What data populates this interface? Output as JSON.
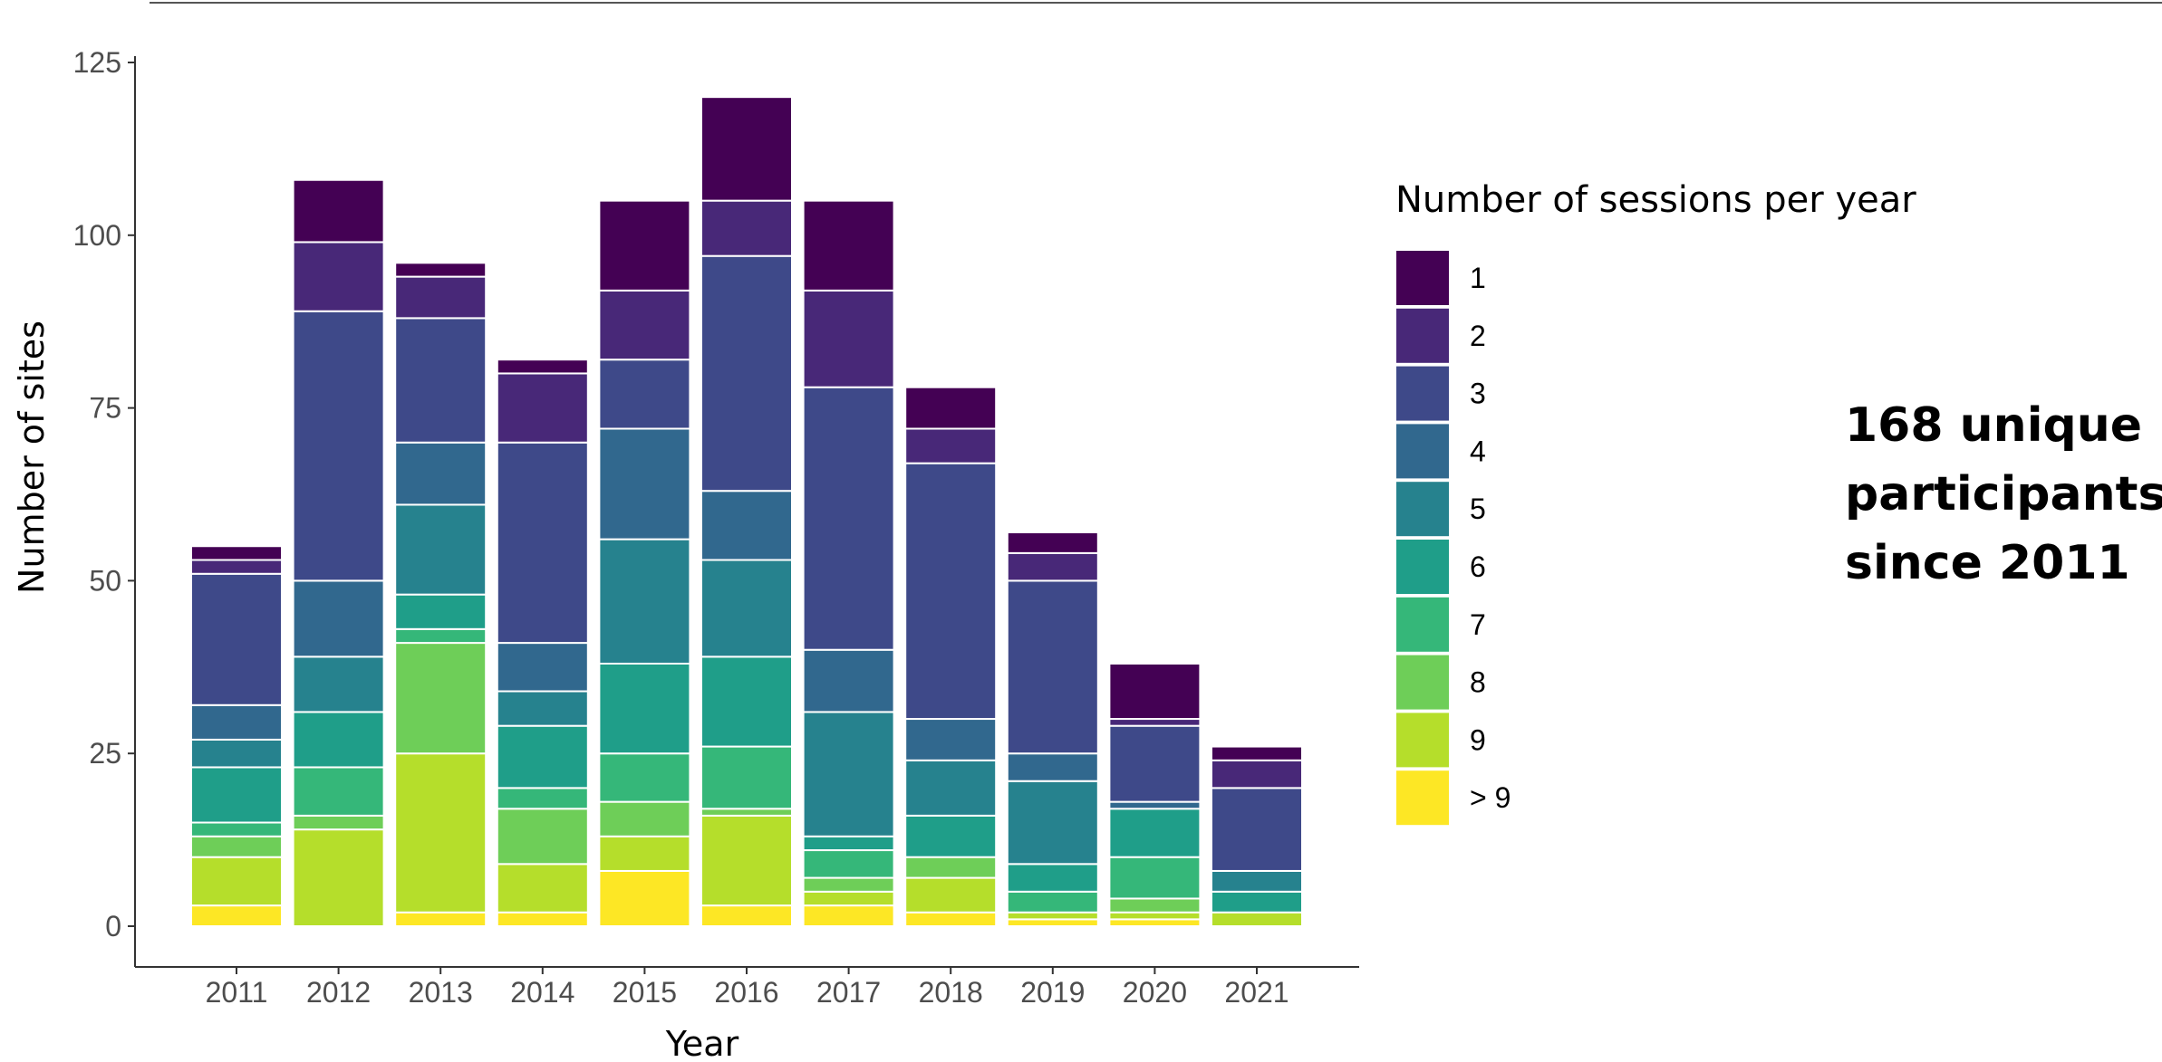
{
  "annotation": {
    "lines": [
      "168 unique",
      "participants",
      "since 2011"
    ]
  },
  "chart_data": {
    "type": "bar",
    "stacked": true,
    "xlabel": "Year",
    "ylabel": "Number of sites",
    "ylim": [
      0,
      125
    ],
    "yticks": [
      0,
      25,
      50,
      75,
      100,
      125
    ],
    "grid": false,
    "legend": {
      "title": "Number of sessions per year",
      "position": "right"
    },
    "categories": [
      "2011",
      "2012",
      "2013",
      "2014",
      "2015",
      "2016",
      "2017",
      "2018",
      "2019",
      "2020",
      "2021"
    ],
    "series": [
      {
        "name": "> 9",
        "color": "#fde725",
        "values": [
          3,
          0,
          2,
          2,
          8,
          3,
          3,
          2,
          1,
          1,
          0
        ]
      },
      {
        "name": "9",
        "color": "#b5de2b",
        "values": [
          7,
          14,
          23,
          7,
          5,
          13,
          2,
          5,
          1,
          1,
          2
        ]
      },
      {
        "name": "8",
        "color": "#6ece58",
        "values": [
          3,
          2,
          16,
          8,
          5,
          1,
          2,
          3,
          0,
          2,
          0
        ]
      },
      {
        "name": "7",
        "color": "#35b779",
        "values": [
          2,
          7,
          2,
          3,
          7,
          9,
          4,
          0,
          3,
          6,
          0
        ]
      },
      {
        "name": "6",
        "color": "#1f9e89",
        "values": [
          8,
          8,
          5,
          9,
          13,
          13,
          2,
          6,
          4,
          7,
          3
        ]
      },
      {
        "name": "5",
        "color": "#26828e",
        "values": [
          4,
          8,
          13,
          5,
          18,
          14,
          18,
          8,
          12,
          0,
          3
        ]
      },
      {
        "name": "4",
        "color": "#31688e",
        "values": [
          5,
          11,
          9,
          7,
          16,
          10,
          9,
          6,
          4,
          1,
          0
        ]
      },
      {
        "name": "3",
        "color": "#3e4989",
        "values": [
          19,
          39,
          18,
          29,
          10,
          34,
          38,
          37,
          25,
          11,
          12
        ]
      },
      {
        "name": "2",
        "color": "#482878",
        "values": [
          2,
          10,
          6,
          10,
          10,
          8,
          14,
          5,
          4,
          1,
          4
        ]
      },
      {
        "name": "1",
        "color": "#440154",
        "values": [
          2,
          9,
          2,
          2,
          13,
          15,
          13,
          6,
          3,
          8,
          2
        ]
      }
    ]
  }
}
